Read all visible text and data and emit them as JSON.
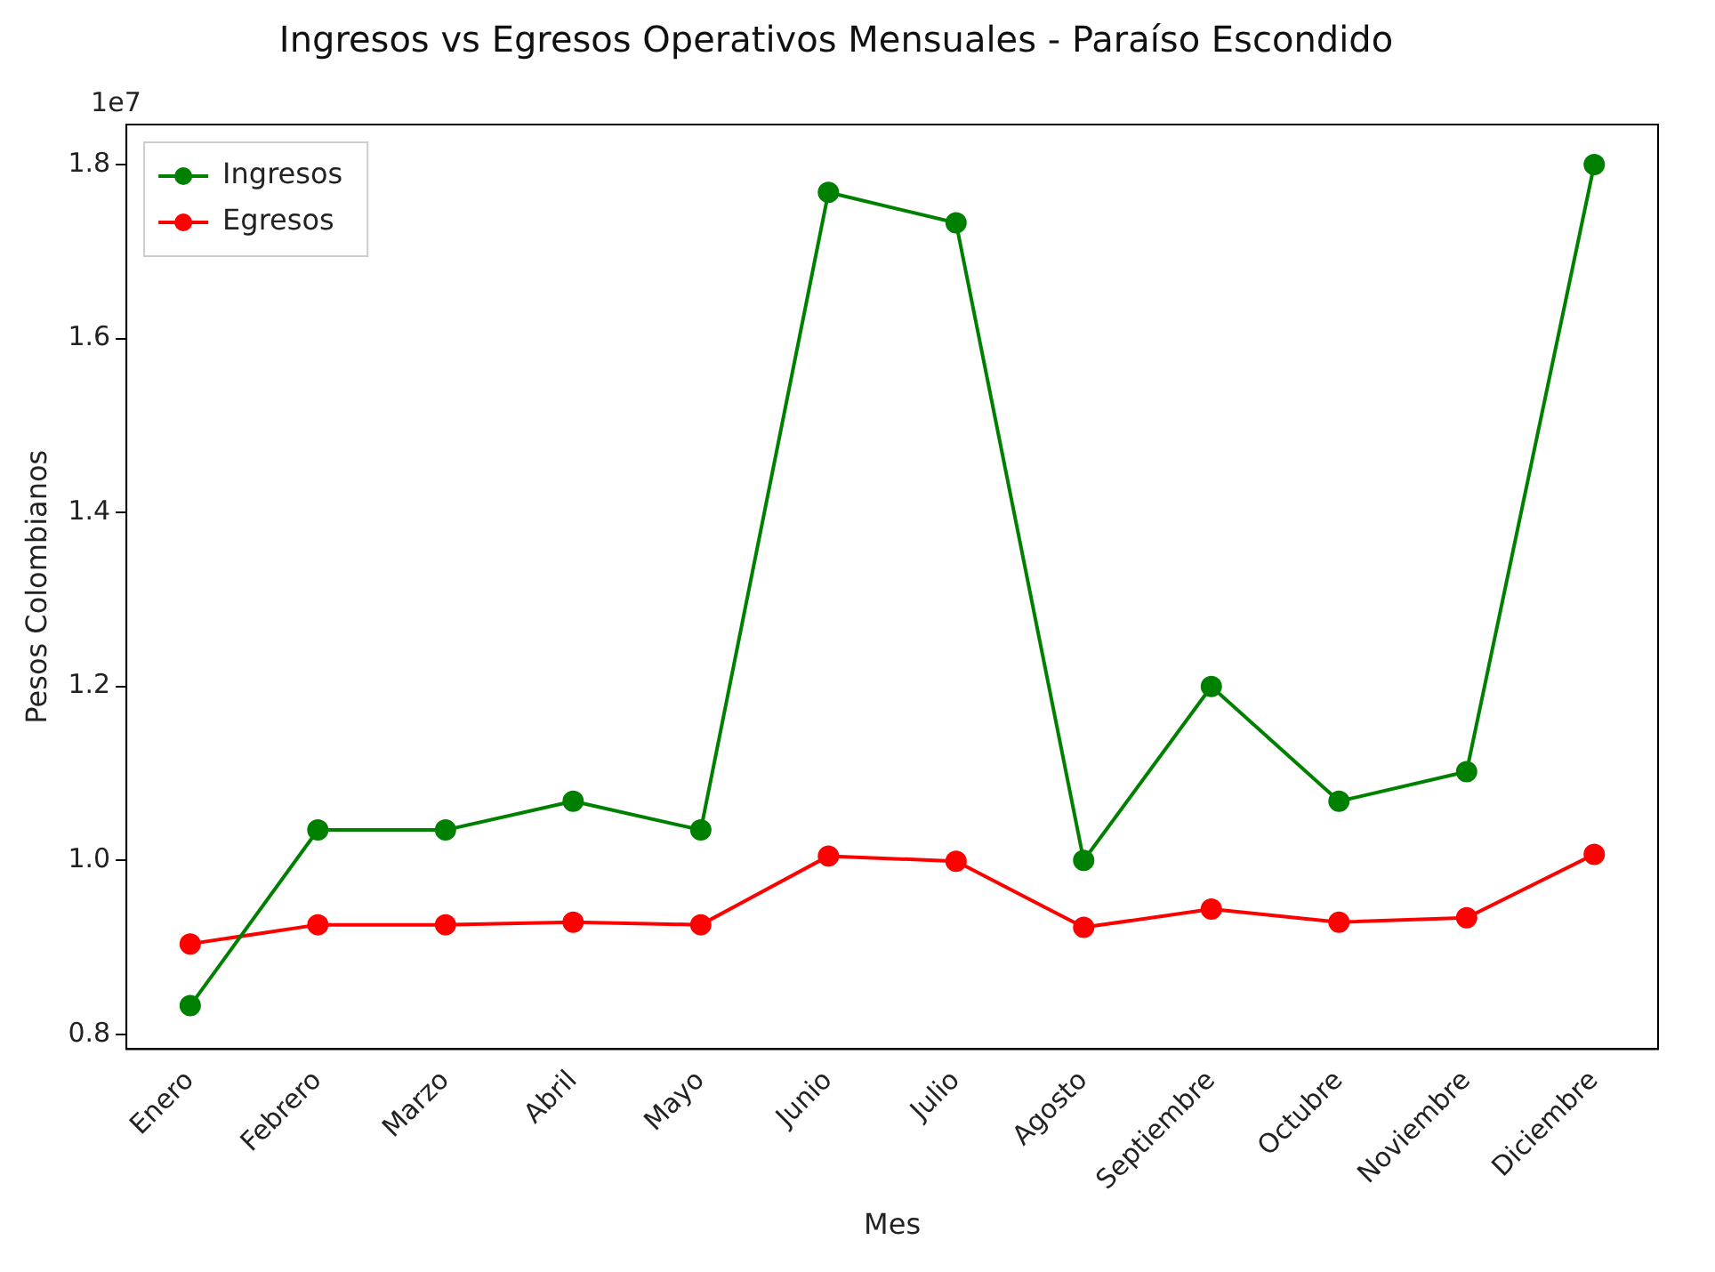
{
  "chart_data": {
    "type": "line",
    "title": "Ingresos vs Egresos Operativos Mensuales - Paraíso Escondido",
    "xlabel": "Mes",
    "ylabel": "Pesos Colombianos",
    "categories": [
      "Enero",
      "Febrero",
      "Marzo",
      "Abril",
      "Mayo",
      "Junio",
      "Julio",
      "Agosto",
      "Septiembre",
      "Octubre",
      "Noviembre",
      "Diciembre"
    ],
    "series": [
      {
        "name": "Ingresos",
        "color": "#008000",
        "values": [
          0.833,
          1.035,
          1.035,
          1.068,
          1.035,
          1.768,
          1.733,
          1.0,
          1.2,
          1.068,
          1.102,
          1.8
        ]
      },
      {
        "name": "Egresos",
        "color": "#ff0000",
        "values": [
          0.904,
          0.926,
          0.926,
          0.929,
          0.926,
          1.005,
          0.999,
          0.923,
          0.944,
          0.929,
          0.934,
          1.007
        ]
      }
    ],
    "ylim": [
      0.783,
      1.846
    ],
    "yticks": [
      0.8,
      {
        "value": 1,
        "label": "1.0"
      },
      1.2,
      1.4,
      1.6,
      1.8
    ],
    "annotations": [
      "1e7"
    ],
    "legend": "top left",
    "marker": "circle",
    "line_style": "solid",
    "grid": false
  }
}
